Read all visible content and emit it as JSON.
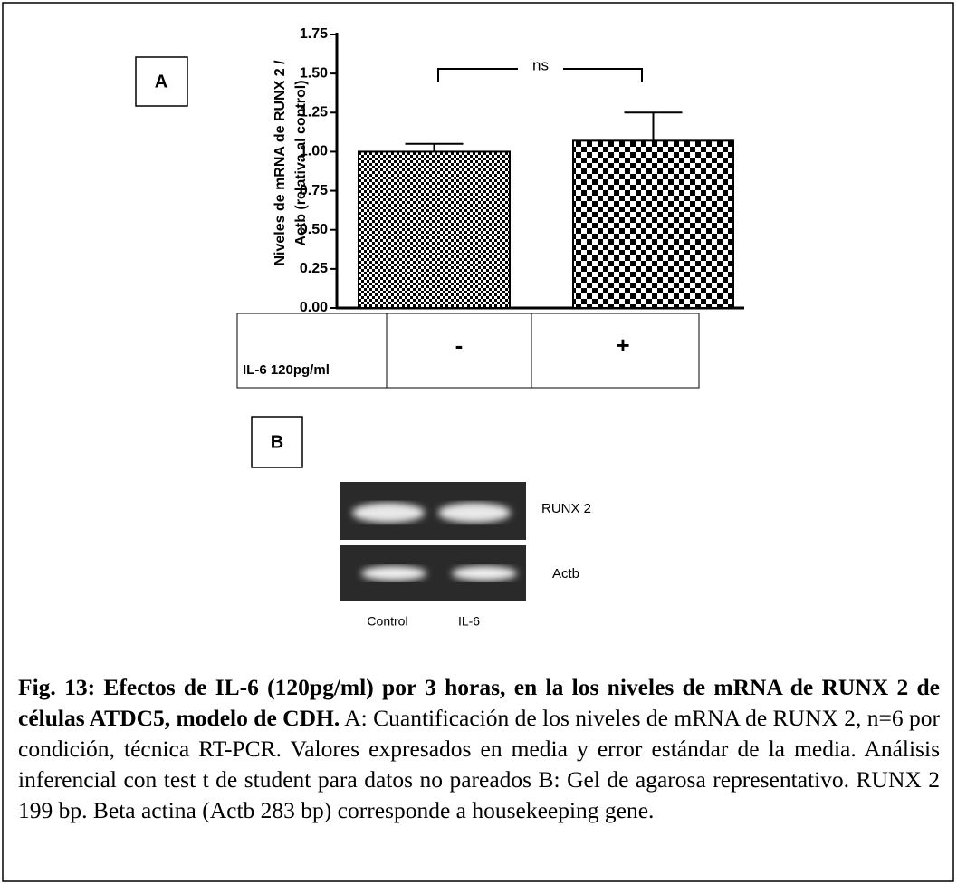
{
  "chart_data": {
    "type": "bar",
    "ylabel": [
      "Niveles de mRNA de RUNX 2 /",
      "Actb (relativa al control)"
    ],
    "categories": [
      "-",
      "+"
    ],
    "row_label": "IL-6 120pg/ml",
    "values": [
      1.0,
      1.07
    ],
    "errors": [
      0.05,
      0.18
    ],
    "annotation": "ns",
    "ylim": [
      0,
      1.75
    ],
    "yticks": [
      {
        "value": 0,
        "label": "0.00"
      },
      {
        "value": 0.25,
        "label": "0.25"
      },
      {
        "value": 0.5,
        "label": "0.50"
      },
      {
        "value": 0.75,
        "label": "0.75"
      },
      {
        "value": 1,
        "label": "1.00"
      },
      {
        "value": 1.25,
        "label": "1.25"
      },
      {
        "value": 1.5,
        "label": "1.50"
      },
      {
        "value": 1.75,
        "label": "1.75"
      }
    ]
  },
  "panels": [
    "A",
    "B"
  ],
  "gel": {
    "bands": [
      "RUNX 2",
      "Actb"
    ],
    "lanes": [
      "Control",
      "IL-6"
    ]
  },
  "caption": {
    "title": "Fig. 13: Efectos de IL-6 (120pg/ml) por 3 horas, en la los niveles de mRNA de RUNX 2 de células ATDC5, modelo de CDH.",
    "text": "A: Cuantificación de los niveles de mRNA de RUNX 2, n=6 por condición, técnica RT-PCR. Valores expresados en media y error estándar de la media. Análisis inferencial con test t de student para datos no pareados B: Gel de agarosa representativo. RUNX 2 199 bp. Beta actina (Actb 283 bp) corresponde a housekeeping gene."
  }
}
